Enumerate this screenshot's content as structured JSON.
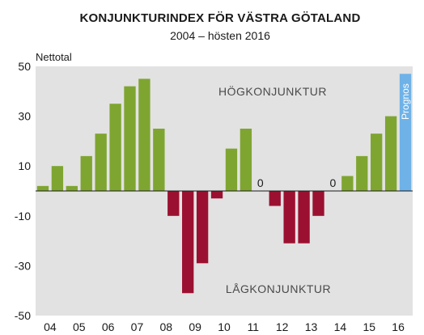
{
  "chart_data": {
    "type": "bar",
    "title": "KONJUNKTURINDEX FÖR VÄSTRA GÖTALAND",
    "subtitle": "2004 – hösten 2016",
    "ylabel": "Nettotal",
    "ylim": [
      -50,
      50
    ],
    "yticks": [
      50,
      30,
      10,
      -10,
      -30,
      -50
    ],
    "xticks": [
      "04",
      "05",
      "06",
      "07",
      "08",
      "09",
      "10",
      "11",
      "12",
      "13",
      "14",
      "15",
      "16"
    ],
    "values": [
      2,
      10,
      2,
      14,
      23,
      35,
      42,
      45,
      25,
      -10,
      -41,
      -29,
      -3,
      17,
      25,
      0,
      -6,
      -21,
      -21,
      -10,
      0,
      6,
      14,
      23,
      30,
      47
    ],
    "annotations": {
      "high": "HÖGKONJUNKTUR",
      "low": "LÅGKONJUNKTUR",
      "zero_label": "0",
      "forecast": "Prognos"
    },
    "grid": false,
    "colors": {
      "positive": "#7fa531",
      "negative": "#9b1030",
      "forecast": "#6fb2e8",
      "background": "#e2e2e2"
    }
  }
}
